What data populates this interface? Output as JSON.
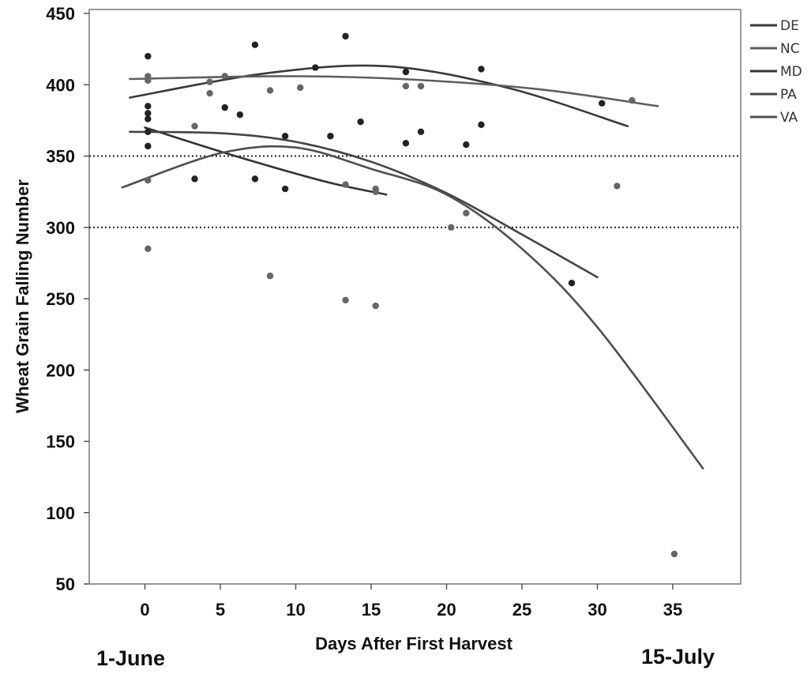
{
  "chart_data": {
    "type": "scatter",
    "xlabel": "Days After First Harvest",
    "ylabel": "Wheat Grain Falling Number",
    "xlim": [
      -3,
      39
    ],
    "ylim": [
      50,
      455
    ],
    "xticks": [
      0,
      5,
      10,
      15,
      20,
      25,
      30,
      35
    ],
    "yticks": [
      50,
      100,
      150,
      200,
      250,
      300,
      350,
      400,
      450
    ],
    "grid": false,
    "legend_position": "top-right",
    "reference_lines": [
      350,
      300
    ],
    "points_dark": [
      [
        0.2,
        420
      ],
      [
        0.2,
        385
      ],
      [
        0.2,
        380
      ],
      [
        0.2,
        376
      ],
      [
        0.2,
        367
      ],
      [
        0.2,
        357
      ],
      [
        5.3,
        384
      ],
      [
        6.3,
        379
      ],
      [
        7.3,
        428
      ],
      [
        9.3,
        364
      ],
      [
        11.3,
        412
      ],
      [
        12.3,
        364
      ],
      [
        13.3,
        434
      ],
      [
        14.3,
        374
      ],
      [
        17.3,
        409
      ],
      [
        17.3,
        359
      ],
      [
        18.3,
        367
      ],
      [
        21.3,
        358
      ],
      [
        22.3,
        411
      ],
      [
        22.3,
        372
      ],
      [
        30.3,
        387
      ],
      [
        28.3,
        261
      ],
      [
        7.3,
        334
      ],
      [
        9.3,
        327
      ],
      [
        3.3,
        334
      ]
    ],
    "points_gray": [
      [
        0.2,
        406
      ],
      [
        0.2,
        403
      ],
      [
        0.2,
        333
      ],
      [
        0.2,
        285
      ],
      [
        4.3,
        402
      ],
      [
        4.3,
        394
      ],
      [
        5.3,
        406
      ],
      [
        8.3,
        396
      ],
      [
        10.3,
        398
      ],
      [
        3.3,
        371
      ],
      [
        8.3,
        266
      ],
      [
        13.3,
        249
      ],
      [
        15.3,
        245
      ],
      [
        13.3,
        330
      ],
      [
        15.3,
        327
      ],
      [
        15.3,
        325
      ],
      [
        17.3,
        399
      ],
      [
        18.3,
        399
      ],
      [
        20.3,
        300
      ],
      [
        21.3,
        310
      ],
      [
        32.3,
        389
      ],
      [
        31.3,
        329
      ],
      [
        35.1,
        71
      ]
    ],
    "series": [
      {
        "name": "DE",
        "color": "#3a3a3a",
        "x": [
          -1,
          8,
          16,
          24,
          32
        ],
        "y": [
          391,
          408,
          413,
          398,
          371
        ]
      },
      {
        "name": "NC",
        "color": "#5e5e5e",
        "x": [
          -1,
          9,
          17,
          26,
          34
        ],
        "y": [
          404,
          406,
          404,
          397,
          385
        ]
      },
      {
        "name": "MD",
        "color": "#333333",
        "x": [
          0,
          6,
          12,
          16
        ],
        "y": [
          370,
          350,
          332,
          323
        ]
      },
      {
        "name": "PA",
        "color": "#444444",
        "x": [
          -1,
          5,
          10,
          15,
          20,
          25,
          30
        ],
        "y": [
          367,
          366,
          360,
          346,
          324,
          295,
          265
        ]
      },
      {
        "name": "VA",
        "color": "#4f4f4f",
        "x": [
          -1.5,
          5,
          10,
          15,
          20,
          25,
          30,
          37
        ],
        "y": [
          328,
          352,
          356,
          341,
          323,
          285,
          230,
          131
        ]
      }
    ]
  },
  "annotations": {
    "left_date": "1-June",
    "right_date": "15-July"
  }
}
